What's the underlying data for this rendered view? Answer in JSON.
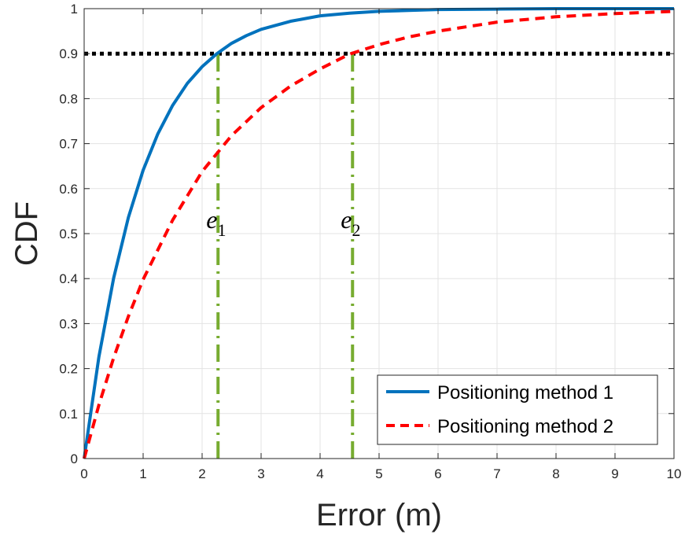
{
  "chart_data": {
    "type": "line",
    "xlabel": "Error (m)",
    "ylabel": "CDF",
    "xlim": [
      0,
      10
    ],
    "ylim": [
      0,
      1
    ],
    "xticks": [
      "0",
      "1",
      "2",
      "3",
      "4",
      "5",
      "6",
      "7",
      "8",
      "9",
      "10"
    ],
    "yticks": [
      "0",
      "0.1",
      "0.2",
      "0.3",
      "0.4",
      "0.5",
      "0.6",
      "0.7",
      "0.8",
      "0.9",
      "1"
    ],
    "grid": true,
    "legend_position": "bottom-right",
    "series": [
      {
        "name": "Positioning method 1",
        "color": "#0072BD",
        "style": "solid",
        "x": [
          0,
          0.25,
          0.5,
          0.75,
          1,
          1.25,
          1.5,
          1.75,
          2,
          2.25,
          2.5,
          2.75,
          3,
          3.5,
          4,
          4.5,
          5,
          5.5,
          6,
          7,
          8,
          9,
          10
        ],
        "y": [
          0,
          0.226,
          0.401,
          0.536,
          0.641,
          0.722,
          0.785,
          0.834,
          0.871,
          0.9,
          0.923,
          0.94,
          0.954,
          0.972,
          0.984,
          0.99,
          0.994,
          0.996,
          0.998,
          0.999,
          1.0,
          1.0,
          1.0
        ]
      },
      {
        "name": "Positioning method 2",
        "color": "#FF0000",
        "style": "dashed",
        "x": [
          0,
          0.25,
          0.5,
          0.75,
          1,
          1.5,
          2,
          2.5,
          3,
          3.5,
          4,
          4.5,
          5,
          5.5,
          6,
          7,
          8,
          9,
          10
        ],
        "y": [
          0,
          0.119,
          0.224,
          0.316,
          0.398,
          0.53,
          0.638,
          0.718,
          0.78,
          0.828,
          0.866,
          0.899,
          0.92,
          0.937,
          0.95,
          0.97,
          0.982,
          0.989,
          0.994
        ]
      }
    ],
    "reference_lines": [
      {
        "orientation": "horizontal",
        "value": 0.9,
        "color": "#000000",
        "style": "dotted"
      },
      {
        "orientation": "vertical",
        "value": 2.27,
        "color": "#77AC30",
        "style": "dash-dot",
        "label": "e",
        "subscript": "1"
      },
      {
        "orientation": "vertical",
        "value": 4.55,
        "color": "#77AC30",
        "style": "dash-dot",
        "label": "e",
        "subscript": "2"
      }
    ]
  }
}
